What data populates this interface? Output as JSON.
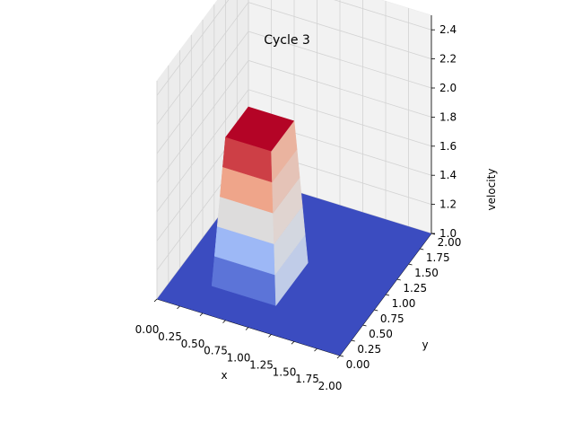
{
  "chart_data": {
    "type": "surface",
    "title": "Cycle 3",
    "xlabel": "x",
    "ylabel": "y",
    "zlabel": "velocity",
    "xlim": [
      0.0,
      2.0
    ],
    "ylim": [
      0.0,
      2.0
    ],
    "zlim": [
      1.0,
      2.5
    ],
    "x_ticks": [
      "0.00",
      "0.25",
      "0.50",
      "0.75",
      "1.00",
      "1.25",
      "1.50",
      "1.75",
      "2.00"
    ],
    "y_ticks": [
      "0.00",
      "0.25",
      "0.50",
      "0.75",
      "1.00",
      "1.25",
      "1.50",
      "1.75",
      "2.00"
    ],
    "z_ticks": [
      "1.0",
      "1.2",
      "1.4",
      "1.6",
      "1.8",
      "2.0",
      "2.2",
      "2.4"
    ],
    "colormap": "coolwarm",
    "grid": true,
    "surface": {
      "baseline_value": 1.0,
      "plateau_value": 2.0,
      "plateau_x_range": [
        0.5,
        1.0
      ],
      "plateau_y_range": [
        0.5,
        1.0
      ]
    }
  }
}
